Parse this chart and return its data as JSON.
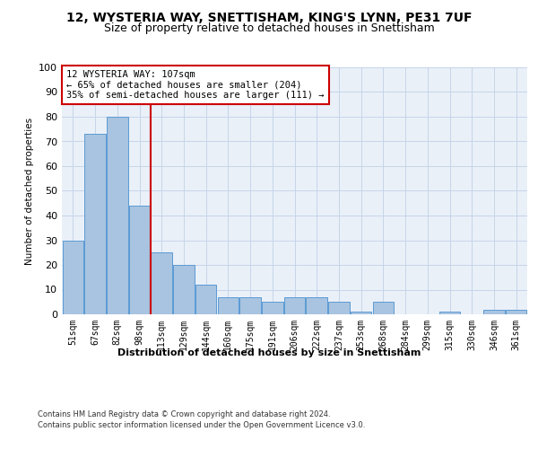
{
  "title1": "12, WYSTERIA WAY, SNETTISHAM, KING'S LYNN, PE31 7UF",
  "title2": "Size of property relative to detached houses in Snettisham",
  "xlabel": "Distribution of detached houses by size in Snettisham",
  "ylabel": "Number of detached properties",
  "categories": [
    "51sqm",
    "67sqm",
    "82sqm",
    "98sqm",
    "113sqm",
    "129sqm",
    "144sqm",
    "160sqm",
    "175sqm",
    "191sqm",
    "206sqm",
    "222sqm",
    "237sqm",
    "253sqm",
    "268sqm",
    "284sqm",
    "299sqm",
    "315sqm",
    "330sqm",
    "346sqm",
    "361sqm"
  ],
  "values": [
    30,
    73,
    80,
    44,
    25,
    20,
    12,
    7,
    7,
    5,
    7,
    7,
    5,
    1,
    5,
    0,
    0,
    1,
    0,
    2,
    2
  ],
  "bar_color": "#a8c4e0",
  "bar_edge_color": "#5b9bd5",
  "vline_pos": 3.5,
  "vline_color": "#cc0000",
  "annotation_text": "12 WYSTERIA WAY: 107sqm\n← 65% of detached houses are smaller (204)\n35% of semi-detached houses are larger (111) →",
  "annotation_box_color": "#ffffff",
  "annotation_box_edge_color": "#cc0000",
  "ylim": [
    0,
    100
  ],
  "yticks": [
    0,
    10,
    20,
    30,
    40,
    50,
    60,
    70,
    80,
    90,
    100
  ],
  "footer1": "Contains HM Land Registry data © Crown copyright and database right 2024.",
  "footer2": "Contains public sector information licensed under the Open Government Licence v3.0.",
  "plot_bg_color": "#eaf0f8",
  "grid_color": "#c5d5e8",
  "title1_fontsize": 10,
  "title2_fontsize": 9
}
